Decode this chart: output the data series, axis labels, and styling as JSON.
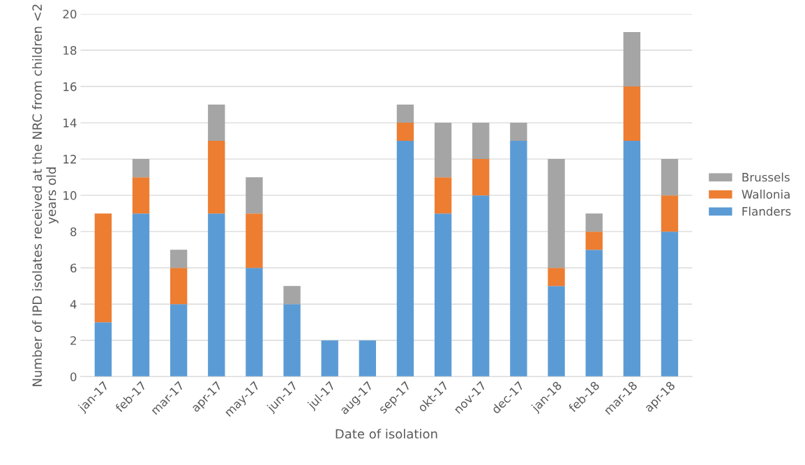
{
  "chart_data": {
    "type": "bar",
    "stacked": true,
    "xlabel": "Date of isolation",
    "ylabel": "Number of IPD isolates received at the NRC from children <2 years old",
    "categories": [
      "jan-17",
      "feb-17",
      "mar-17",
      "apr-17",
      "may-17",
      "jun-17",
      "jul-17",
      "aug-17",
      "sep-17",
      "okt-17",
      "nov-17",
      "dec-17",
      "jan-18",
      "feb-18",
      "mar-18",
      "apr-18"
    ],
    "series": [
      {
        "name": "Flanders",
        "color": "#5b9bd5",
        "values": [
          3,
          9,
          4,
          9,
          6,
          4,
          2,
          2,
          13,
          9,
          10,
          13,
          5,
          7,
          13,
          8
        ]
      },
      {
        "name": "Wallonia",
        "color": "#ed7d31",
        "values": [
          6,
          2,
          2,
          4,
          3,
          0,
          0,
          0,
          1,
          2,
          2,
          0,
          1,
          1,
          3,
          2
        ]
      },
      {
        "name": "Brussels",
        "color": "#a5a5a5",
        "values": [
          0,
          1,
          1,
          2,
          2,
          1,
          0,
          0,
          1,
          3,
          2,
          1,
          6,
          1,
          3,
          2
        ]
      }
    ],
    "ylim": [
      0,
      20
    ],
    "yticks": [
      0,
      2,
      4,
      6,
      8,
      10,
      12,
      14,
      16,
      18,
      20
    ],
    "grid": "y",
    "legend": "right"
  }
}
